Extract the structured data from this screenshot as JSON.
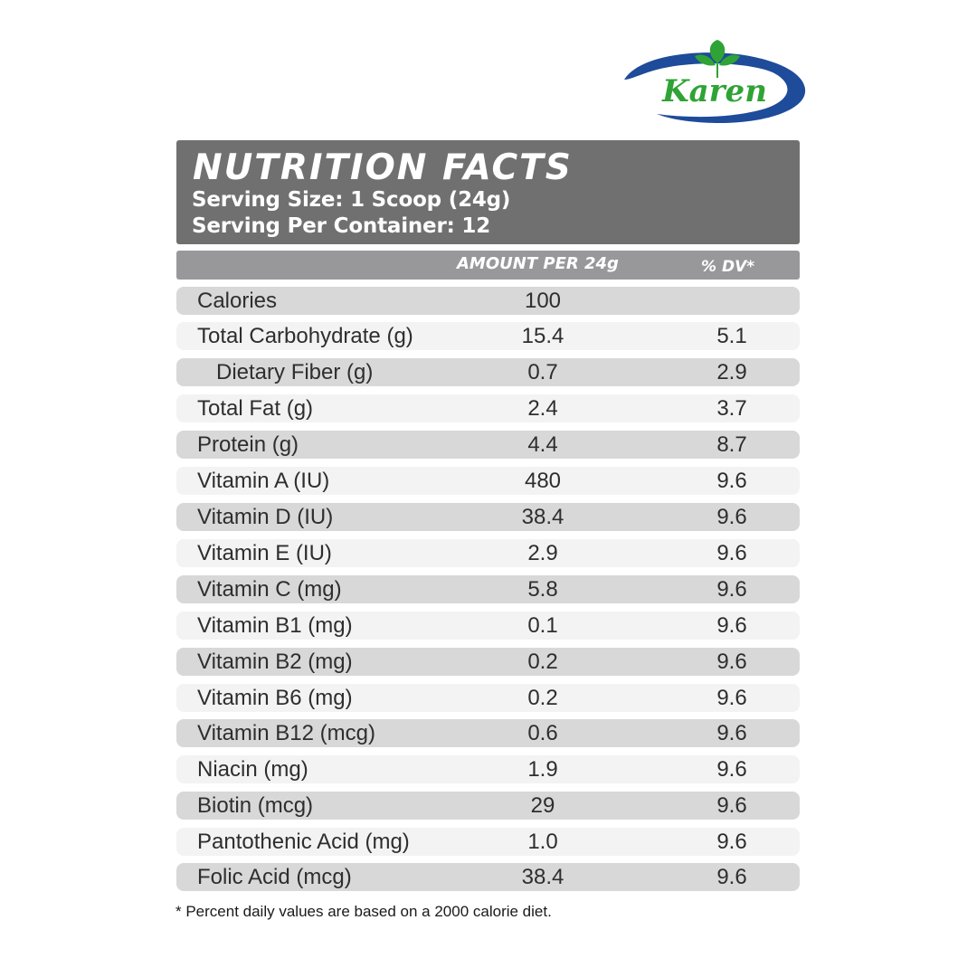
{
  "brand": {
    "logo_text": "Karen"
  },
  "header": {
    "title": "NUTRITION FACTS",
    "serving_size": "Serving Size: 1 Scoop (24g)",
    "servings_per_container": "Serving Per Container: 12"
  },
  "columns": {
    "amount": "AMOUNT PER 24g",
    "dv": "% DV*"
  },
  "rows": [
    {
      "name": "Calories",
      "amount": "100",
      "dv": ""
    },
    {
      "name": "Total Carbohydrate (g)",
      "amount": "15.4",
      "dv": "5.1"
    },
    {
      "name": "Dietary Fiber (g)",
      "amount": "0.7",
      "dv": "2.9"
    },
    {
      "name": "Total Fat (g)",
      "amount": "2.4",
      "dv": "3.7"
    },
    {
      "name": "Protein (g)",
      "amount": "4.4",
      "dv": "8.7"
    },
    {
      "name": "Vitamin A (IU)",
      "amount": "480",
      "dv": "9.6"
    },
    {
      "name": "Vitamin D (IU)",
      "amount": "38.4",
      "dv": "9.6"
    },
    {
      "name": "Vitamin E (IU)",
      "amount": "2.9",
      "dv": "9.6"
    },
    {
      "name": "Vitamin C (mg)",
      "amount": "5.8",
      "dv": "9.6"
    },
    {
      "name": "Vitamin B1 (mg)",
      "amount": "0.1",
      "dv": "9.6"
    },
    {
      "name": "Vitamin B2 (mg)",
      "amount": "0.2",
      "dv": "9.6"
    },
    {
      "name": "Vitamin B6 (mg)",
      "amount": "0.2",
      "dv": "9.6"
    },
    {
      "name": "Vitamin B12 (mcg)",
      "amount": "0.6",
      "dv": "9.6"
    },
    {
      "name": "Niacin (mg)",
      "amount": "1.9",
      "dv": "9.6"
    },
    {
      "name": "Biotin (mcg)",
      "amount": "29",
      "dv": "9.6"
    },
    {
      "name": "Pantothenic Acid (mg)",
      "amount": "1.0",
      "dv": "9.6"
    },
    {
      "name": "Folic Acid (mcg)",
      "amount": "38.4",
      "dv": "9.6"
    }
  ],
  "footnote": "* Percent daily values are based on a 2000 calorie diet.",
  "colors": {
    "header_bg": "#707071",
    "column_header_bg": "#98989a",
    "row_dark": "#d8d8d9",
    "row_light": "#f3f3f4",
    "logo_blue": "#1e4b9a",
    "logo_green": "#2fa336"
  }
}
